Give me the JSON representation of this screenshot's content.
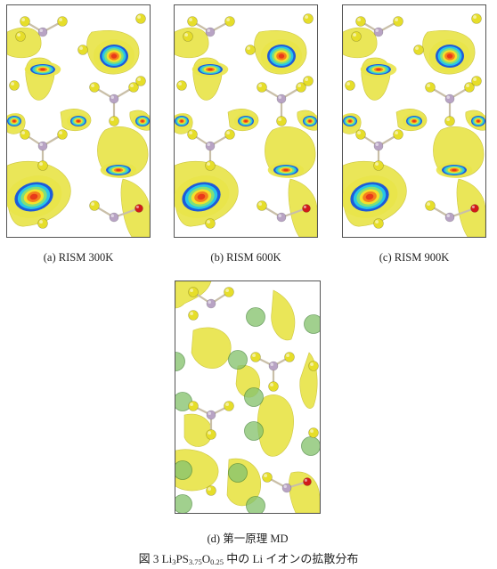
{
  "panels": [
    {
      "id": "a",
      "caption": "(a) RISM 300K"
    },
    {
      "id": "b",
      "caption": "(b) RISM 600K"
    },
    {
      "id": "c",
      "caption": "(c) RISM 900K"
    },
    {
      "id": "d",
      "caption": "(d) 第一原理 MD"
    }
  ],
  "figure_caption": {
    "prefix": "図 3 Li",
    "sub1": "3",
    "mid1": "PS",
    "sub2": "3.75",
    "mid2": "O",
    "sub3": "0.25",
    "suffix": " 中の Li イオンの拡散分布"
  },
  "colors": {
    "density_yellow": "#e9e44a",
    "sulfur": "#e6de2a",
    "phosphorus": "#b8a3c4",
    "oxygen": "#d11a1a",
    "lithium": "#87c46f",
    "density_core": [
      "#1e5bd9",
      "#28c6e6",
      "#7fe07a",
      "#f4e12c",
      "#f57f1e",
      "#e83a1a"
    ]
  }
}
